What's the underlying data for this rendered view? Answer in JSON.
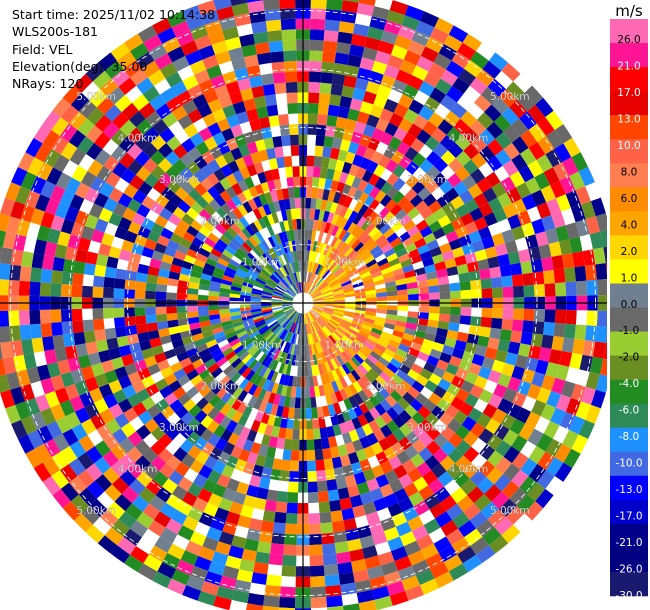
{
  "info": {
    "start_time": "Start time: 2025/11/02 10:14:38",
    "station": "WLS200s-181",
    "field": "Field: VEL",
    "elevation": "Elevation(deg): 35.00",
    "nrays": "NRays: 120"
  },
  "chart_data": {
    "type": "heatmap",
    "projection": "polar (PPI)",
    "field": "VEL",
    "units": "m/s",
    "n_rays": 120,
    "range_rings_km": [
      1,
      2,
      3,
      4,
      5
    ],
    "ring_labels": [
      "1.00km",
      "2.00km",
      "3.00km",
      "4.00km",
      "5.00km"
    ],
    "max_range_km": 5.4,
    "gate_spacing_km": 0.18,
    "near_field_pattern": "positive (yellow/orange/red) velocities on the east side, negative (green/blue) on the west side within ~1.5 km; noise beyond",
    "colorbar": {
      "unit_label": "m/s",
      "tick_labels": [
        "26.0",
        "21.0",
        "17.0",
        "13.0",
        "10.0",
        "8.0",
        "6.0",
        "4.0",
        "2.0",
        "1.0",
        "0.0",
        "-1.0",
        "-2.0",
        "-4.0",
        "-6.0",
        "-8.0",
        "-10.0",
        "-13.0",
        "-17.0",
        "-21.0",
        "-26.0",
        "-30.0"
      ],
      "colors": [
        "#ff69b4",
        "#ff1493",
        "#ff0000",
        "#e60000",
        "#ff4500",
        "#ff6347",
        "#ff7f50",
        "#ff8c00",
        "#ffa500",
        "#ffd700",
        "#ffff00",
        "#708090",
        "#696969",
        "#9acd32",
        "#6b8e23",
        "#228b22",
        "#2e8b57",
        "#1e90ff",
        "#4169e1",
        "#0000ff",
        "#0000cd",
        "#00008b",
        "#000080",
        "#191970"
      ]
    }
  }
}
